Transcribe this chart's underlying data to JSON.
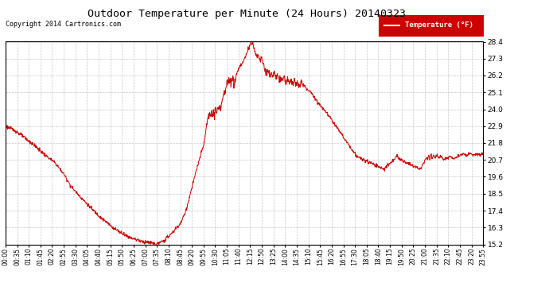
{
  "title": "Outdoor Temperature per Minute (24 Hours) 20140323",
  "copyright_text": "Copyright 2014 Cartronics.com",
  "legend_label": "Temperature (°F)",
  "line_color": "#cc0000",
  "background_color": "#ffffff",
  "plot_bg_color": "#ffffff",
  "grid_color": "#bbbbbb",
  "ylim": [
    15.2,
    28.4
  ],
  "yticks": [
    15.2,
    16.3,
    17.4,
    18.5,
    19.6,
    20.7,
    21.8,
    22.9,
    24.0,
    25.1,
    26.2,
    27.3,
    28.4
  ],
  "xtick_labels": [
    "00:00",
    "00:35",
    "01:10",
    "01:45",
    "02:20",
    "02:55",
    "03:30",
    "04:05",
    "04:40",
    "05:15",
    "05:50",
    "06:25",
    "07:00",
    "07:35",
    "08:10",
    "08:45",
    "09:20",
    "09:55",
    "10:30",
    "11:05",
    "11:40",
    "12:15",
    "12:50",
    "13:25",
    "14:00",
    "14:35",
    "15:10",
    "15:45",
    "16:20",
    "16:55",
    "17:30",
    "18:05",
    "18:40",
    "19:15",
    "19:50",
    "20:25",
    "21:00",
    "21:35",
    "22:10",
    "22:45",
    "23:20",
    "23:55"
  ],
  "keypoints": [
    [
      0,
      22.9
    ],
    [
      30,
      22.6
    ],
    [
      60,
      22.1
    ],
    [
      90,
      21.6
    ],
    [
      120,
      21.0
    ],
    [
      150,
      20.5
    ],
    [
      175,
      19.8
    ],
    [
      200,
      18.9
    ],
    [
      230,
      18.2
    ],
    [
      260,
      17.5
    ],
    [
      295,
      16.8
    ],
    [
      330,
      16.2
    ],
    [
      370,
      15.7
    ],
    [
      410,
      15.4
    ],
    [
      440,
      15.3
    ],
    [
      455,
      15.2
    ],
    [
      465,
      15.3
    ],
    [
      475,
      15.4
    ],
    [
      490,
      15.7
    ],
    [
      505,
      16.0
    ],
    [
      515,
      16.3
    ],
    [
      525,
      16.5
    ],
    [
      535,
      16.9
    ],
    [
      545,
      17.5
    ],
    [
      555,
      18.3
    ],
    [
      565,
      19.2
    ],
    [
      575,
      20.0
    ],
    [
      585,
      20.8
    ],
    [
      595,
      21.5
    ],
    [
      600,
      22.0
    ],
    [
      605,
      22.8
    ],
    [
      610,
      23.5
    ],
    [
      615,
      23.8
    ],
    [
      617,
      23.6
    ],
    [
      620,
      23.9
    ],
    [
      622,
      23.5
    ],
    [
      625,
      23.8
    ],
    [
      628,
      23.6
    ],
    [
      632,
      24.0
    ],
    [
      638,
      23.8
    ],
    [
      642,
      24.2
    ],
    [
      648,
      24.0
    ],
    [
      652,
      24.5
    ],
    [
      660,
      25.1
    ],
    [
      668,
      25.7
    ],
    [
      675,
      26.0
    ],
    [
      680,
      25.7
    ],
    [
      685,
      26.1
    ],
    [
      690,
      25.8
    ],
    [
      695,
      26.2
    ],
    [
      700,
      26.5
    ],
    [
      710,
      26.9
    ],
    [
      718,
      27.2
    ],
    [
      725,
      27.5
    ],
    [
      730,
      27.8
    ],
    [
      735,
      28.1
    ],
    [
      740,
      28.4
    ],
    [
      742,
      28.2
    ],
    [
      745,
      28.3
    ],
    [
      748,
      28.0
    ],
    [
      752,
      27.7
    ],
    [
      758,
      27.4
    ],
    [
      762,
      27.6
    ],
    [
      768,
      27.2
    ],
    [
      772,
      27.4
    ],
    [
      775,
      27.1
    ],
    [
      780,
      26.8
    ],
    [
      785,
      26.3
    ],
    [
      790,
      26.5
    ],
    [
      795,
      26.2
    ],
    [
      800,
      26.4
    ],
    [
      805,
      26.1
    ],
    [
      810,
      26.3
    ],
    [
      815,
      26.0
    ],
    [
      820,
      26.2
    ],
    [
      825,
      26.0
    ],
    [
      830,
      25.9
    ],
    [
      840,
      26.0
    ],
    [
      845,
      25.8
    ],
    [
      850,
      26.0
    ],
    [
      855,
      25.8
    ],
    [
      860,
      25.9
    ],
    [
      865,
      25.7
    ],
    [
      870,
      25.9
    ],
    [
      875,
      25.6
    ],
    [
      880,
      25.8
    ],
    [
      885,
      25.5
    ],
    [
      890,
      25.7
    ],
    [
      900,
      25.5
    ],
    [
      910,
      25.3
    ],
    [
      920,
      25.1
    ],
    [
      930,
      24.8
    ],
    [
      940,
      24.5
    ],
    [
      950,
      24.2
    ],
    [
      960,
      24.0
    ],
    [
      970,
      23.7
    ],
    [
      980,
      23.4
    ],
    [
      990,
      23.1
    ],
    [
      1000,
      22.8
    ],
    [
      1010,
      22.5
    ],
    [
      1020,
      22.1
    ],
    [
      1030,
      21.8
    ],
    [
      1040,
      21.5
    ],
    [
      1050,
      21.2
    ],
    [
      1060,
      20.9
    ],
    [
      1070,
      20.8
    ],
    [
      1080,
      20.7
    ],
    [
      1090,
      20.6
    ],
    [
      1100,
      20.5
    ],
    [
      1110,
      20.4
    ],
    [
      1120,
      20.3
    ],
    [
      1130,
      20.2
    ],
    [
      1140,
      20.1
    ],
    [
      1150,
      20.3
    ],
    [
      1160,
      20.5
    ],
    [
      1170,
      20.7
    ],
    [
      1175,
      20.9
    ],
    [
      1180,
      21.0
    ],
    [
      1185,
      20.8
    ],
    [
      1190,
      20.7
    ],
    [
      1200,
      20.6
    ],
    [
      1210,
      20.5
    ],
    [
      1220,
      20.4
    ],
    [
      1230,
      20.3
    ],
    [
      1240,
      20.2
    ],
    [
      1250,
      20.1
    ],
    [
      1260,
      20.5
    ],
    [
      1270,
      20.9
    ],
    [
      1272,
      20.7
    ],
    [
      1275,
      21.0
    ],
    [
      1278,
      20.7
    ],
    [
      1282,
      21.1
    ],
    [
      1285,
      20.8
    ],
    [
      1290,
      21.0
    ],
    [
      1295,
      20.8
    ],
    [
      1300,
      21.1
    ],
    [
      1305,
      20.8
    ],
    [
      1310,
      21.0
    ],
    [
      1315,
      20.8
    ],
    [
      1320,
      20.7
    ],
    [
      1330,
      20.8
    ],
    [
      1340,
      20.9
    ],
    [
      1350,
      20.8
    ],
    [
      1360,
      20.9
    ],
    [
      1370,
      21.0
    ],
    [
      1380,
      21.1
    ],
    [
      1390,
      21.0
    ],
    [
      1400,
      21.1
    ],
    [
      1410,
      21.0
    ],
    [
      1420,
      21.1
    ],
    [
      1430,
      21.0
    ],
    [
      1439,
      21.1
    ]
  ]
}
